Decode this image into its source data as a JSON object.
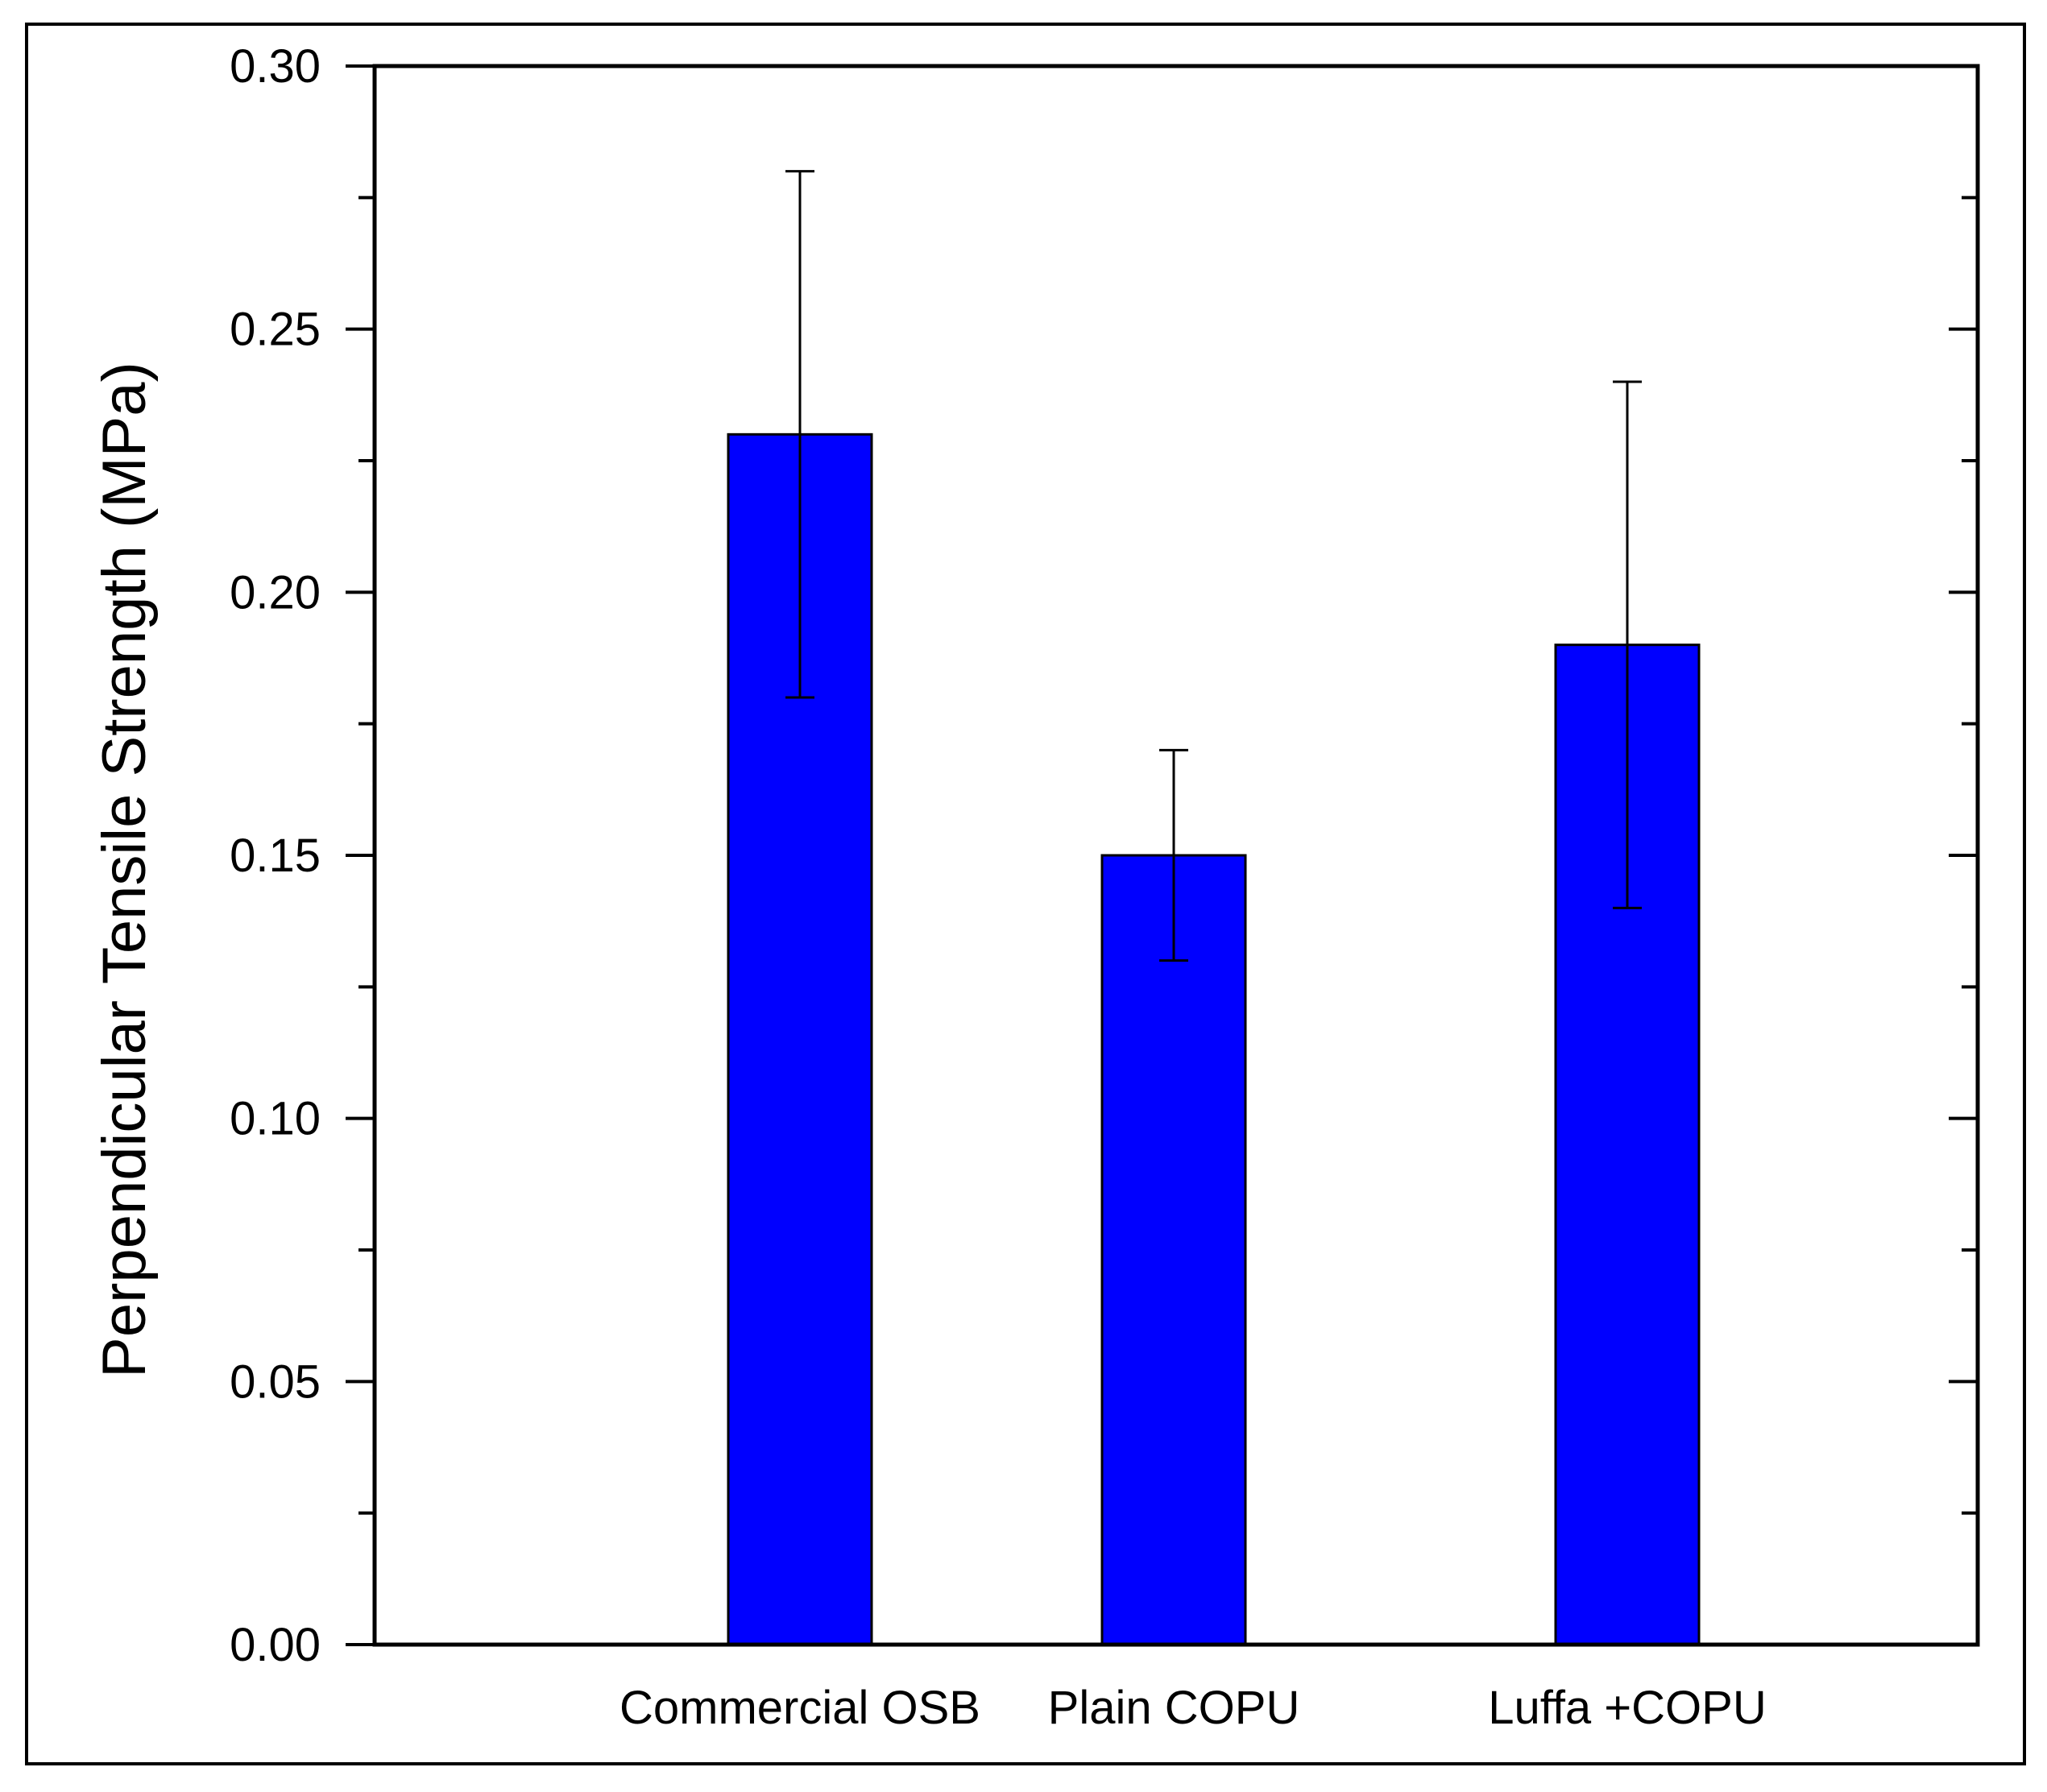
{
  "chart_data": {
    "type": "bar",
    "title": "",
    "xlabel": "",
    "ylabel": "Perpendicular Tensile Strength (MPa)",
    "categories": [
      "Commercial OSB",
      "Plain COPU",
      "Luffa +COPU"
    ],
    "values": [
      0.23,
      0.15,
      0.19
    ],
    "error_low": [
      0.18,
      0.13,
      0.14
    ],
    "error_high": [
      0.28,
      0.17,
      0.24
    ],
    "ylim": [
      0.0,
      0.3
    ],
    "yticks": [
      "0.00",
      "0.05",
      "0.10",
      "0.15",
      "0.20",
      "0.25",
      "0.30"
    ],
    "ytick_values": [
      0.0,
      0.05,
      0.1,
      0.15,
      0.2,
      0.25,
      0.3
    ],
    "minor_ytick_values": [
      0.025,
      0.075,
      0.125,
      0.175,
      0.225,
      0.275
    ],
    "grid": false,
    "legend": "none",
    "bar_color": "#0000ff",
    "edge_color": "#000000"
  }
}
